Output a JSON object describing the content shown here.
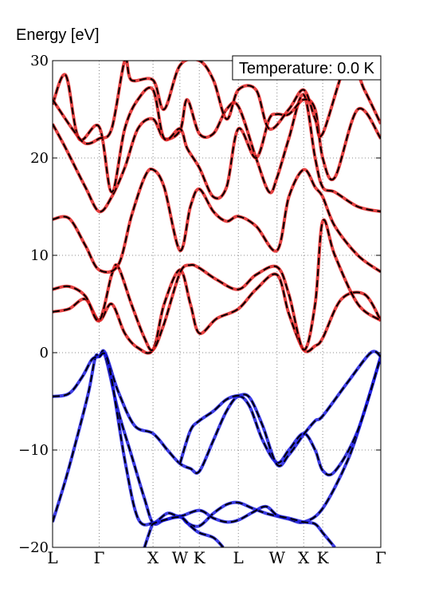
{
  "chart_data": {
    "type": "line",
    "title": "",
    "xlabel": "",
    "ylabel": "Energy [eV]",
    "ylim": [
      -20,
      30
    ],
    "yticks": [
      {
        "value": 30,
        "label": "30"
      },
      {
        "value": 20,
        "label": "20"
      },
      {
        "value": 10,
        "label": "10"
      },
      {
        "value": 0,
        "label": "0"
      },
      {
        "value": -10,
        "label": "−10"
      },
      {
        "value": -20,
        "label": "−20"
      }
    ],
    "kpoints": [
      {
        "label": "L",
        "pos": 0.0
      },
      {
        "label": "Γ",
        "pos": 0.142
      },
      {
        "label": "X",
        "pos": 0.306
      },
      {
        "label": "W",
        "pos": 0.388
      },
      {
        "label": "K",
        "pos": 0.447
      },
      {
        "label": "L",
        "pos": 0.566
      },
      {
        "label": "W",
        "pos": 0.684
      },
      {
        "label": "X",
        "pos": 0.765
      },
      {
        "label": "K",
        "pos": 0.823
      },
      {
        "label": "Γ",
        "pos": 1.0
      }
    ],
    "grid": true,
    "annotation": "Temperature: 0.0 K",
    "annotation_position": "top-right",
    "colors": {
      "conduction": "#e02020",
      "valence": "#1a1adf",
      "reference": "#000000"
    },
    "series": [
      {
        "band": "valence",
        "points": [
          [
            0.0,
            -17.4
          ],
          [
            0.04,
            -13
          ],
          [
            0.08,
            -8
          ],
          [
            0.11,
            -4
          ],
          [
            0.13,
            -0.5
          ],
          [
            0.142,
            -0.4
          ],
          [
            0.16,
            -0.3
          ],
          [
            0.2,
            -6
          ],
          [
            0.24,
            -10.5
          ],
          [
            0.28,
            -15
          ],
          [
            0.306,
            -17.5
          ],
          [
            0.34,
            -17.2
          ],
          [
            0.388,
            -16.8
          ],
          [
            0.41,
            -17.5
          ],
          [
            0.447,
            -17.8
          ],
          [
            0.49,
            -16.5
          ],
          [
            0.53,
            -15.6
          ],
          [
            0.566,
            -15.4
          ],
          [
            0.61,
            -16
          ],
          [
            0.65,
            -16.5
          ],
          [
            0.684,
            -16.8
          ],
          [
            0.72,
            -17.1
          ],
          [
            0.765,
            -17.4
          ],
          [
            0.823,
            -16
          ],
          [
            0.9,
            -11
          ],
          [
            0.95,
            -6
          ],
          [
            1.0,
            -0.4
          ]
        ]
      },
      {
        "band": "valence",
        "points": [
          [
            0.0,
            -4.5
          ],
          [
            0.05,
            -4.2
          ],
          [
            0.09,
            -2.5
          ],
          [
            0.12,
            -0.7
          ],
          [
            0.142,
            -0.4
          ],
          [
            0.16,
            0.0
          ],
          [
            0.2,
            -4
          ],
          [
            0.25,
            -7.5
          ],
          [
            0.306,
            -8.3
          ],
          [
            0.35,
            -10
          ],
          [
            0.388,
            -11.4
          ],
          [
            0.42,
            -11.9
          ],
          [
            0.447,
            -12.2
          ],
          [
            0.49,
            -9
          ],
          [
            0.53,
            -6
          ],
          [
            0.566,
            -4.5
          ],
          [
            0.6,
            -5.5
          ],
          [
            0.64,
            -9
          ],
          [
            0.684,
            -11.3
          ],
          [
            0.72,
            -10
          ],
          [
            0.765,
            -8.3
          ],
          [
            0.8,
            -10
          ],
          [
            0.823,
            -12.1
          ],
          [
            0.86,
            -12.2
          ],
          [
            0.93,
            -8
          ],
          [
            1.0,
            -0.4
          ]
        ]
      },
      {
        "band": "valence",
        "points": [
          [
            0.142,
            -0.4
          ],
          [
            0.17,
            -1
          ],
          [
            0.22,
            -11
          ],
          [
            0.26,
            -17
          ],
          [
            0.306,
            -17.5
          ],
          [
            0.35,
            -16.5
          ],
          [
            0.388,
            -16.8
          ],
          [
            0.447,
            -16.2
          ],
          [
            0.49,
            -17
          ],
          [
            0.53,
            -17.4
          ],
          [
            0.566,
            -17.2
          ],
          [
            0.61,
            -16.4
          ],
          [
            0.65,
            -15.8
          ],
          [
            0.684,
            -16.7
          ],
          [
            0.72,
            -17
          ],
          [
            0.765,
            -17.4
          ],
          [
            0.8,
            -17.6
          ],
          [
            0.823,
            -18.5
          ],
          [
            0.86,
            -20
          ]
        ]
      },
      {
        "band": "valence",
        "points": [
          [
            0.388,
            -11.4
          ],
          [
            0.42,
            -8
          ],
          [
            0.447,
            -7
          ],
          [
            0.49,
            -6
          ],
          [
            0.53,
            -4.8
          ],
          [
            0.566,
            -4.4
          ],
          [
            0.6,
            -4.6
          ],
          [
            0.64,
            -7.5
          ],
          [
            0.684,
            -11.5
          ],
          [
            0.72,
            -10.5
          ],
          [
            0.765,
            -8.4
          ],
          [
            0.8,
            -7
          ],
          [
            0.823,
            -6.5
          ],
          [
            0.9,
            -3
          ],
          [
            0.97,
            0.0
          ],
          [
            1.0,
            -0.4
          ]
        ]
      },
      {
        "band": "valence",
        "points": [
          [
            0.28,
            -20
          ],
          [
            0.3,
            -18
          ],
          [
            0.306,
            -17.6
          ],
          [
            0.33,
            -17.3
          ],
          [
            0.388,
            -16.9
          ],
          [
            0.42,
            -17.8
          ],
          [
            0.447,
            -18.5
          ],
          [
            0.49,
            -19
          ],
          [
            0.52,
            -20
          ]
        ]
      },
      {
        "band": "conduction",
        "points": [
          [
            0.0,
            4.2
          ],
          [
            0.05,
            4.5
          ],
          [
            0.1,
            5.5
          ],
          [
            0.142,
            3.3
          ],
          [
            0.18,
            5
          ],
          [
            0.22,
            2
          ],
          [
            0.26,
            0.5
          ],
          [
            0.306,
            0.3
          ],
          [
            0.34,
            5
          ],
          [
            0.388,
            8.5
          ],
          [
            0.42,
            5
          ],
          [
            0.447,
            2
          ],
          [
            0.5,
            3.5
          ],
          [
            0.566,
            4.5
          ],
          [
            0.62,
            6.5
          ],
          [
            0.684,
            8
          ],
          [
            0.72,
            4
          ],
          [
            0.765,
            0.3
          ],
          [
            0.8,
            0.7
          ],
          [
            0.823,
            1.5
          ],
          [
            0.88,
            5.5
          ],
          [
            0.95,
            6
          ],
          [
            1.0,
            3.3
          ]
        ]
      },
      {
        "band": "conduction",
        "points": [
          [
            0.0,
            6.5
          ],
          [
            0.05,
            6.8
          ],
          [
            0.1,
            5.8
          ],
          [
            0.142,
            3.3
          ],
          [
            0.18,
            8
          ],
          [
            0.2,
            8.8
          ],
          [
            0.24,
            5
          ],
          [
            0.28,
            1.5
          ],
          [
            0.306,
            0.3
          ],
          [
            0.34,
            3
          ],
          [
            0.388,
            8.2
          ],
          [
            0.42,
            9
          ],
          [
            0.447,
            8.7
          ],
          [
            0.5,
            7.5
          ],
          [
            0.566,
            6.5
          ],
          [
            0.62,
            8
          ],
          [
            0.684,
            8.8
          ],
          [
            0.72,
            6
          ],
          [
            0.765,
            0.3
          ],
          [
            0.8,
            5
          ],
          [
            0.823,
            13.5
          ],
          [
            0.86,
            10
          ],
          [
            0.93,
            5
          ],
          [
            1.0,
            3.3
          ]
        ]
      },
      {
        "band": "conduction",
        "points": [
          [
            0.0,
            13.7
          ],
          [
            0.05,
            13.8
          ],
          [
            0.1,
            11
          ],
          [
            0.142,
            8.5
          ],
          [
            0.2,
            9
          ],
          [
            0.24,
            14
          ],
          [
            0.28,
            18
          ],
          [
            0.306,
            18.8
          ],
          [
            0.34,
            17
          ],
          [
            0.388,
            10.5
          ],
          [
            0.42,
            15
          ],
          [
            0.447,
            16.8
          ],
          [
            0.49,
            14.5
          ],
          [
            0.53,
            13.5
          ],
          [
            0.566,
            14
          ],
          [
            0.62,
            13
          ],
          [
            0.684,
            10.5
          ],
          [
            0.72,
            16
          ],
          [
            0.765,
            18.8
          ],
          [
            0.8,
            17
          ],
          [
            0.823,
            16
          ],
          [
            0.86,
            13
          ],
          [
            0.93,
            10
          ],
          [
            1.0,
            8.3
          ]
        ]
      },
      {
        "band": "conduction",
        "points": [
          [
            0.0,
            23.5
          ],
          [
            0.04,
            21
          ],
          [
            0.1,
            17
          ],
          [
            0.142,
            14.5
          ],
          [
            0.18,
            16
          ],
          [
            0.22,
            19
          ],
          [
            0.26,
            23
          ],
          [
            0.306,
            24
          ],
          [
            0.34,
            22
          ],
          [
            0.388,
            22.8
          ],
          [
            0.41,
            26
          ],
          [
            0.447,
            22.5
          ],
          [
            0.49,
            22.5
          ],
          [
            0.53,
            25
          ],
          [
            0.566,
            25.3
          ],
          [
            0.62,
            20
          ],
          [
            0.66,
            16.5
          ],
          [
            0.684,
            18
          ],
          [
            0.72,
            22
          ],
          [
            0.765,
            26.5
          ],
          [
            0.8,
            20
          ],
          [
            0.823,
            17
          ],
          [
            0.86,
            16.5
          ],
          [
            0.93,
            15
          ],
          [
            1.0,
            14.5
          ]
        ]
      },
      {
        "band": "conduction",
        "points": [
          [
            0.0,
            25.5
          ],
          [
            0.04,
            28.5
          ],
          [
            0.08,
            22
          ],
          [
            0.142,
            23.2
          ],
          [
            0.18,
            16.5
          ],
          [
            0.22,
            23
          ],
          [
            0.26,
            26
          ],
          [
            0.306,
            27
          ],
          [
            0.34,
            22
          ],
          [
            0.388,
            23
          ],
          [
            0.41,
            21
          ],
          [
            0.447,
            19
          ],
          [
            0.49,
            16
          ],
          [
            0.53,
            17
          ],
          [
            0.566,
            23
          ],
          [
            0.62,
            20
          ],
          [
            0.66,
            24
          ],
          [
            0.684,
            24.5
          ],
          [
            0.72,
            24.5
          ],
          [
            0.765,
            26
          ],
          [
            0.8,
            25
          ],
          [
            0.823,
            20
          ],
          [
            0.86,
            18
          ],
          [
            0.93,
            25
          ],
          [
            1.0,
            22
          ]
        ]
      },
      {
        "band": "conduction",
        "points": [
          [
            0.0,
            26
          ],
          [
            0.06,
            23
          ],
          [
            0.1,
            21.5
          ],
          [
            0.142,
            22
          ],
          [
            0.18,
            23
          ],
          [
            0.22,
            30
          ],
          [
            0.24,
            28
          ],
          [
            0.306,
            28
          ],
          [
            0.34,
            25
          ],
          [
            0.388,
            29.5
          ],
          [
            0.447,
            30
          ],
          [
            0.49,
            28
          ],
          [
            0.53,
            24
          ],
          [
            0.566,
            27
          ],
          [
            0.62,
            27
          ],
          [
            0.66,
            23
          ],
          [
            0.72,
            25
          ],
          [
            0.765,
            27
          ],
          [
            0.8,
            24
          ],
          [
            0.823,
            22.5
          ],
          [
            0.9,
            30
          ],
          [
            0.95,
            27
          ],
          [
            1.0,
            23.5
          ]
        ]
      }
    ]
  }
}
